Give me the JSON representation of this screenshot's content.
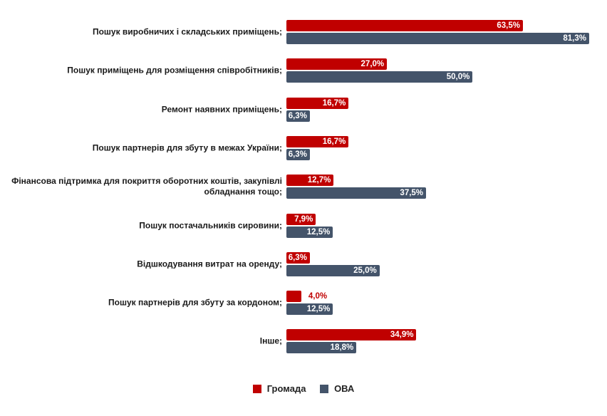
{
  "colors": {
    "hromada": "#c00000",
    "ova": "#44546a"
  },
  "chart_data": {
    "type": "bar",
    "orientation": "horizontal",
    "categories": [
      "Пошук виробничих і складських приміщень;",
      "Пошук приміщень для розміщення співробітників;",
      "Ремонт наявних приміщень;",
      "Пошук партнерів для збуту в межах України;",
      "Фінансова підтримка для покриття оборотних коштів, закупівлі обладнання тощо;",
      "Пошук постачальників сировини;",
      "Відшкодування витрат на оренду;",
      "Пошук партнерів для збуту за кордоном;",
      "Інше;"
    ],
    "series": [
      {
        "name": "Громада",
        "values": [
          63.5,
          27.0,
          16.7,
          16.7,
          12.7,
          7.9,
          6.3,
          4.0,
          34.9
        ],
        "labels": [
          "63,5%",
          "27,0%",
          "16,7%",
          "16,7%",
          "12,7%",
          "7,9%",
          "6,3%",
          "4,0%",
          "34,9%"
        ]
      },
      {
        "name": "ОВА",
        "values": [
          81.3,
          50.0,
          6.3,
          6.3,
          37.5,
          12.5,
          25.0,
          12.5,
          18.8
        ],
        "labels": [
          "81,3%",
          "50,0%",
          "6,3%",
          "6,3%",
          "37,5%",
          "12,5%",
          "25,0%",
          "12,5%",
          "18,8%"
        ]
      }
    ],
    "legend": "bottom-center",
    "grid": false,
    "xlim": [
      0,
      85
    ]
  }
}
